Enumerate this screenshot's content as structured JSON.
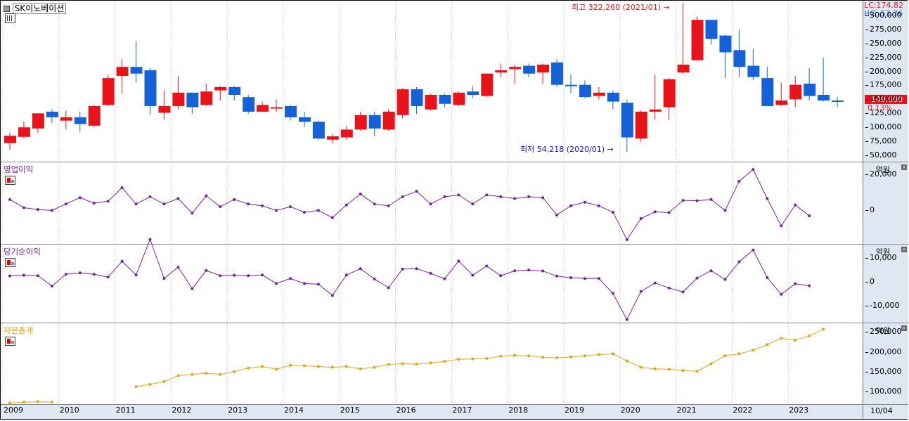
{
  "stock": {
    "name": "SK이노베이션",
    "lc_label": "LC:174.82",
    "hc_label": "HC:-53.76",
    "current_price_label": "149,000",
    "current_change_label": "0.13%",
    "high_annotation": "최고 322,260 (2021/01)",
    "low_annotation": "최저 54,218 (2020/01)",
    "price_ticks": [
      "300,000",
      "275,000",
      "250,000",
      "225,000",
      "200,000",
      "175,000",
      "150,000",
      "125,000",
      "100,000",
      "75,000",
      "50,000"
    ]
  },
  "panels": {
    "op": {
      "title": "영업이익",
      "unit": "억원",
      "ticks": [
        "20,000",
        "0"
      ]
    },
    "net": {
      "title": "당기순이익",
      "unit": "억원",
      "ticks": [
        "10,000",
        "0",
        "-10,000"
      ]
    },
    "equity": {
      "title": "자본총계",
      "unit": "억원",
      "ticks": [
        "250,000",
        "200,000",
        "150,000",
        "100,000"
      ]
    }
  },
  "x_axis": {
    "years": [
      "2009",
      "2010",
      "2011",
      "2012",
      "2013",
      "2014",
      "2015",
      "2016",
      "2017",
      "2018",
      "2019",
      "2020",
      "2021",
      "2022",
      "2023"
    ],
    "corner_label": "10/04"
  },
  "colors": {
    "up": "#e8141b",
    "down": "#1761d6",
    "op_line": "#7b1fa2",
    "net_line": "#7b1fa2",
    "equity_line": "#e8a317",
    "high_marker": "#e8141b",
    "low_marker": "#1010c0"
  },
  "chart_data": [
    {
      "type": "candlestick",
      "title": "SK이노베이션",
      "period": "quarterly",
      "x_start": "2009Q1",
      "ylim": [
        40000,
        325000
      ],
      "candles": [
        {
          "o": 72000,
          "h": 90000,
          "l": 60000,
          "c": 85000
        },
        {
          "o": 83000,
          "h": 110000,
          "l": 80000,
          "c": 100000
        },
        {
          "o": 98000,
          "h": 125000,
          "l": 90000,
          "c": 125000
        },
        {
          "o": 128000,
          "h": 132000,
          "l": 108000,
          "c": 118000
        },
        {
          "o": 112000,
          "h": 130000,
          "l": 96000,
          "c": 118000
        },
        {
          "o": 118000,
          "h": 128000,
          "l": 92000,
          "c": 106000
        },
        {
          "o": 103000,
          "h": 140000,
          "l": 100000,
          "c": 138000
        },
        {
          "o": 140000,
          "h": 194000,
          "l": 138000,
          "c": 188000
        },
        {
          "o": 192000,
          "h": 222000,
          "l": 160000,
          "c": 208000
        },
        {
          "o": 208000,
          "h": 254000,
          "l": 180000,
          "c": 196000
        },
        {
          "o": 202000,
          "h": 206000,
          "l": 122000,
          "c": 138000
        },
        {
          "o": 126000,
          "h": 166000,
          "l": 114000,
          "c": 138000
        },
        {
          "o": 138000,
          "h": 192000,
          "l": 132000,
          "c": 162000
        },
        {
          "o": 162000,
          "h": 162000,
          "l": 124000,
          "c": 136000
        },
        {
          "o": 140000,
          "h": 178000,
          "l": 138000,
          "c": 164000
        },
        {
          "o": 166000,
          "h": 174000,
          "l": 148000,
          "c": 172000
        },
        {
          "o": 172000,
          "h": 174000,
          "l": 148000,
          "c": 158000
        },
        {
          "o": 154000,
          "h": 158000,
          "l": 124000,
          "c": 128000
        },
        {
          "o": 128000,
          "h": 146000,
          "l": 128000,
          "c": 140000
        },
        {
          "o": 134000,
          "h": 150000,
          "l": 128000,
          "c": 136000
        },
        {
          "o": 138000,
          "h": 140000,
          "l": 112000,
          "c": 118000
        },
        {
          "o": 118000,
          "h": 128000,
          "l": 100000,
          "c": 110000
        },
        {
          "o": 110000,
          "h": 112000,
          "l": 78000,
          "c": 80000
        },
        {
          "o": 78000,
          "h": 88000,
          "l": 72000,
          "c": 84000
        },
        {
          "o": 82000,
          "h": 102000,
          "l": 78000,
          "c": 96000
        },
        {
          "o": 96000,
          "h": 128000,
          "l": 94000,
          "c": 122000
        },
        {
          "o": 122000,
          "h": 128000,
          "l": 84000,
          "c": 98000
        },
        {
          "o": 96000,
          "h": 132000,
          "l": 94000,
          "c": 128000
        },
        {
          "o": 122000,
          "h": 170000,
          "l": 116000,
          "c": 168000
        },
        {
          "o": 168000,
          "h": 172000,
          "l": 124000,
          "c": 138000
        },
        {
          "o": 132000,
          "h": 160000,
          "l": 130000,
          "c": 158000
        },
        {
          "o": 158000,
          "h": 160000,
          "l": 136000,
          "c": 142000
        },
        {
          "o": 140000,
          "h": 164000,
          "l": 138000,
          "c": 162000
        },
        {
          "o": 164000,
          "h": 174000,
          "l": 152000,
          "c": 158000
        },
        {
          "o": 156000,
          "h": 196000,
          "l": 154000,
          "c": 196000
        },
        {
          "o": 198000,
          "h": 214000,
          "l": 190000,
          "c": 202000
        },
        {
          "o": 204000,
          "h": 212000,
          "l": 178000,
          "c": 208000
        },
        {
          "o": 210000,
          "h": 214000,
          "l": 190000,
          "c": 196000
        },
        {
          "o": 198000,
          "h": 214000,
          "l": 178000,
          "c": 212000
        },
        {
          "o": 216000,
          "h": 222000,
          "l": 172000,
          "c": 176000
        },
        {
          "o": 176000,
          "h": 194000,
          "l": 162000,
          "c": 174000
        },
        {
          "o": 176000,
          "h": 184000,
          "l": 152000,
          "c": 154000
        },
        {
          "o": 156000,
          "h": 172000,
          "l": 150000,
          "c": 162000
        },
        {
          "o": 162000,
          "h": 166000,
          "l": 132000,
          "c": 146000
        },
        {
          "o": 144000,
          "h": 150000,
          "l": 56000,
          "c": 82000
        },
        {
          "o": 80000,
          "h": 130000,
          "l": 74000,
          "c": 128000
        },
        {
          "o": 128000,
          "h": 194000,
          "l": 114000,
          "c": 132000
        },
        {
          "o": 136000,
          "h": 188000,
          "l": 114000,
          "c": 186000
        },
        {
          "o": 198000,
          "h": 322000,
          "l": 196000,
          "c": 212000
        },
        {
          "o": 220000,
          "h": 298000,
          "l": 218000,
          "c": 292000
        },
        {
          "o": 292000,
          "h": 292000,
          "l": 248000,
          "c": 258000
        },
        {
          "o": 264000,
          "h": 266000,
          "l": 188000,
          "c": 234000
        },
        {
          "o": 238000,
          "h": 274000,
          "l": 190000,
          "c": 208000
        },
        {
          "o": 210000,
          "h": 240000,
          "l": 184000,
          "c": 190000
        },
        {
          "o": 188000,
          "h": 208000,
          "l": 138000,
          "c": 138000
        },
        {
          "o": 140000,
          "h": 180000,
          "l": 138000,
          "c": 148000
        },
        {
          "o": 150000,
          "h": 192000,
          "l": 136000,
          "c": 176000
        },
        {
          "o": 178000,
          "h": 206000,
          "l": 148000,
          "c": 156000
        },
        {
          "o": 158000,
          "h": 224000,
          "l": 146000,
          "c": 148000
        },
        {
          "o": 148000,
          "h": 154000,
          "l": 136000,
          "c": 146000
        }
      ]
    },
    {
      "type": "line",
      "title": "영업이익",
      "ylabel": "억원",
      "ylim": [
        -18000,
        26000
      ],
      "x_start": "2009Q1",
      "values": [
        6000,
        1500,
        500,
        0,
        3500,
        7000,
        4000,
        5000,
        12500,
        3500,
        7500,
        3500,
        6500,
        -1500,
        8000,
        2000,
        6000,
        3500,
        2500,
        0,
        2000,
        -1000,
        0,
        -4000,
        3000,
        9000,
        3500,
        2500,
        7500,
        10500,
        3500,
        7500,
        8500,
        3500,
        8500,
        7500,
        6500,
        7500,
        7000,
        -2500,
        2500,
        4500,
        2500,
        -1000,
        -16000,
        -4500,
        -800,
        -1200,
        5500,
        5300,
        6000,
        0,
        16000,
        22500,
        6500,
        -8500,
        3000,
        -3000
      ]
    },
    {
      "type": "line",
      "title": "당기순이익",
      "ylabel": "억원",
      "ylim": [
        -17000,
        15500
      ],
      "x_start": "2009Q1",
      "values": [
        2500,
        2800,
        2600,
        -1800,
        3200,
        3800,
        3200,
        2000,
        8700,
        2900,
        18000,
        1400,
        6200,
        -2900,
        4800,
        2600,
        2800,
        2600,
        2900,
        -700,
        1400,
        -700,
        -1000,
        -5800,
        2900,
        5600,
        1200,
        -2500,
        5400,
        5600,
        3600,
        1300,
        8800,
        2800,
        6700,
        2600,
        4700,
        5000,
        4600,
        2400,
        1800,
        1400,
        1400,
        -4900,
        -16000,
        -4100,
        -500,
        -2600,
        -4300,
        1600,
        4700,
        1000,
        8500,
        13500,
        1800,
        -5300,
        -800,
        -1700
      ]
    },
    {
      "type": "line",
      "title": "자본총계",
      "ylabel": "억원",
      "ylim": [
        70000,
        270000
      ],
      "x_start": "2009Q1",
      "values": [
        71000,
        73000,
        74500,
        73000,
        null,
        null,
        null,
        null,
        null,
        112000,
        118000,
        125000,
        140000,
        143000,
        146000,
        143000,
        150000,
        159000,
        163000,
        156000,
        166000,
        165000,
        163000,
        161000,
        163000,
        157000,
        161000,
        168000,
        170000,
        169000,
        172000,
        176000,
        181000,
        182000,
        183000,
        189000,
        191000,
        190000,
        186000,
        185000,
        187000,
        190000,
        193000,
        195000,
        177000,
        161000,
        157000,
        156000,
        153000,
        151000,
        170000,
        190000,
        195000,
        204000,
        218000,
        234000,
        229000,
        240000,
        257000
      ]
    }
  ]
}
